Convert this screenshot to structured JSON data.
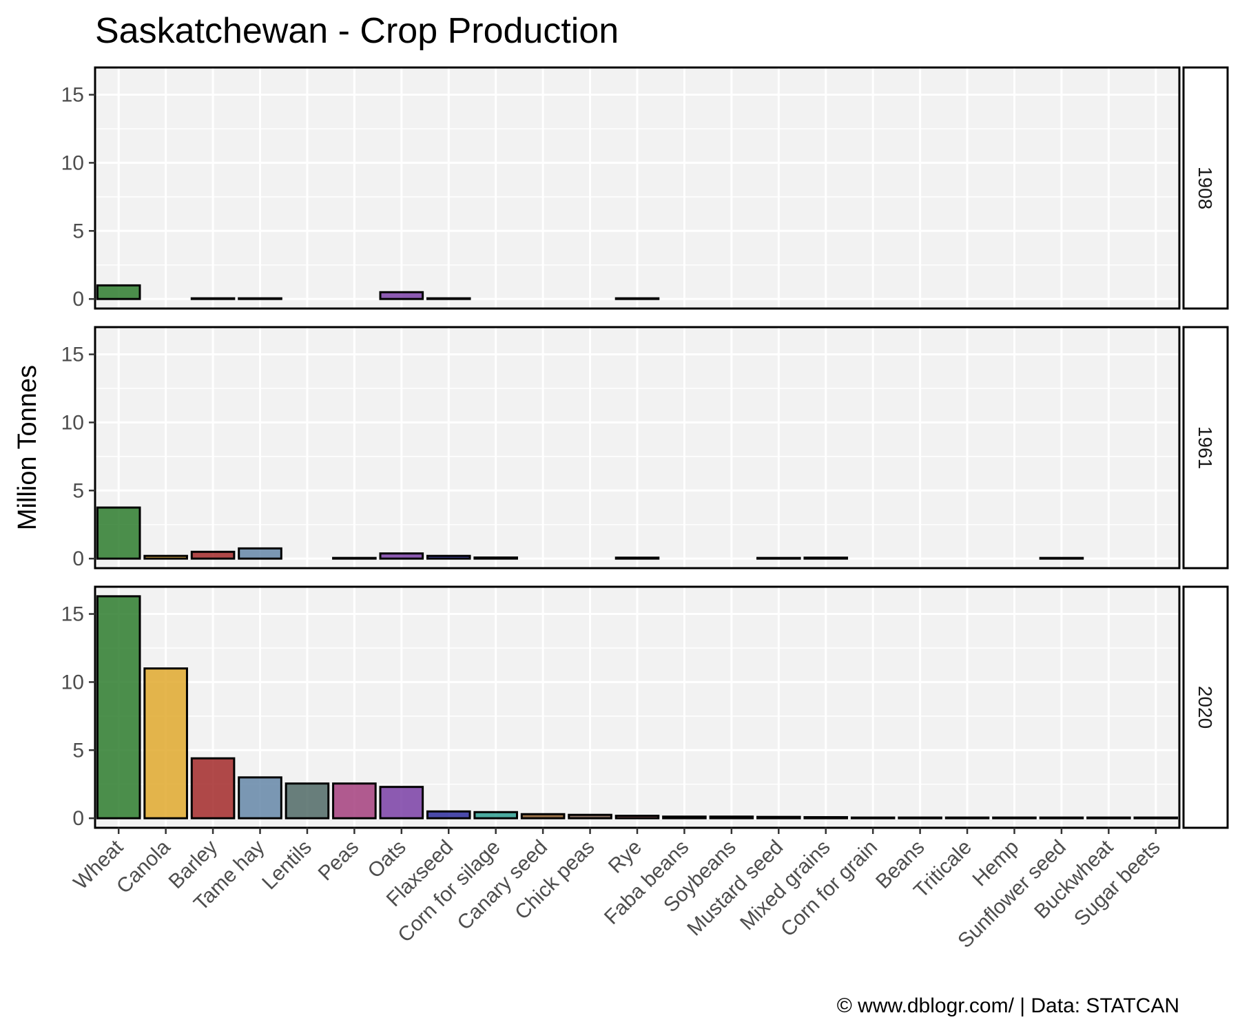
{
  "chart_data": {
    "type": "bar",
    "title": "Saskatchewan - Crop Production",
    "ylabel": "Million Tonnes",
    "xlabel": "",
    "caption": "© www.dblogr.com/  |  Data: STATCAN",
    "ylim": [
      -0.7,
      17
    ],
    "yticks": [
      0,
      5,
      10,
      15
    ],
    "grid": true,
    "legend": "none",
    "categories": [
      "Wheat",
      "Canola",
      "Barley",
      "Tame hay",
      "Lentils",
      "Peas",
      "Oats",
      "Flaxseed",
      "Corn for silage",
      "Canary seed",
      "Chick peas",
      "Rye",
      "Faba beans",
      "Soybeans",
      "Mustard seed",
      "Mixed grains",
      "Corn for grain",
      "Beans",
      "Triticale",
      "Hemp",
      "Sunflower seed",
      "Buckwheat",
      "Sugar beets"
    ],
    "colors": [
      "#2e7d2e",
      "#e0a92e",
      "#a32a2a",
      "#6587a8",
      "#506a66",
      "#a53f7e",
      "#7a3fa6",
      "#2d2d9e",
      "#2e9e90",
      "#8a5a2a",
      "#7a5a4a",
      "#9a4f4f",
      "#5a7f4f",
      "#4f6f8f",
      "#c08a2a",
      "#7a6a3a",
      "#c0a030",
      "#6a4a3a",
      "#8a7a5a",
      "#4a7a3a",
      "#d0b040",
      "#7a4a2a",
      "#aa5a6a"
    ],
    "panels": [
      {
        "label": "1908",
        "values": [
          1.0,
          null,
          0.05,
          0.05,
          null,
          null,
          0.5,
          0.05,
          null,
          null,
          null,
          0.05,
          null,
          null,
          null,
          null,
          null,
          null,
          null,
          null,
          null,
          null,
          null
        ]
      },
      {
        "label": "1961",
        "values": [
          3.75,
          0.2,
          0.5,
          0.75,
          null,
          0.05,
          0.38,
          0.2,
          0.08,
          null,
          null,
          0.07,
          null,
          null,
          0.05,
          0.07,
          null,
          null,
          null,
          null,
          0.03,
          null,
          null
        ]
      },
      {
        "label": "2020",
        "values": [
          16.3,
          11.0,
          4.4,
          3.0,
          2.55,
          2.55,
          2.3,
          0.5,
          0.45,
          0.3,
          0.25,
          0.18,
          0.12,
          0.12,
          0.1,
          0.08,
          0.05,
          0.05,
          0.05,
          0.05,
          0.04,
          0.04,
          0.02
        ]
      }
    ]
  }
}
